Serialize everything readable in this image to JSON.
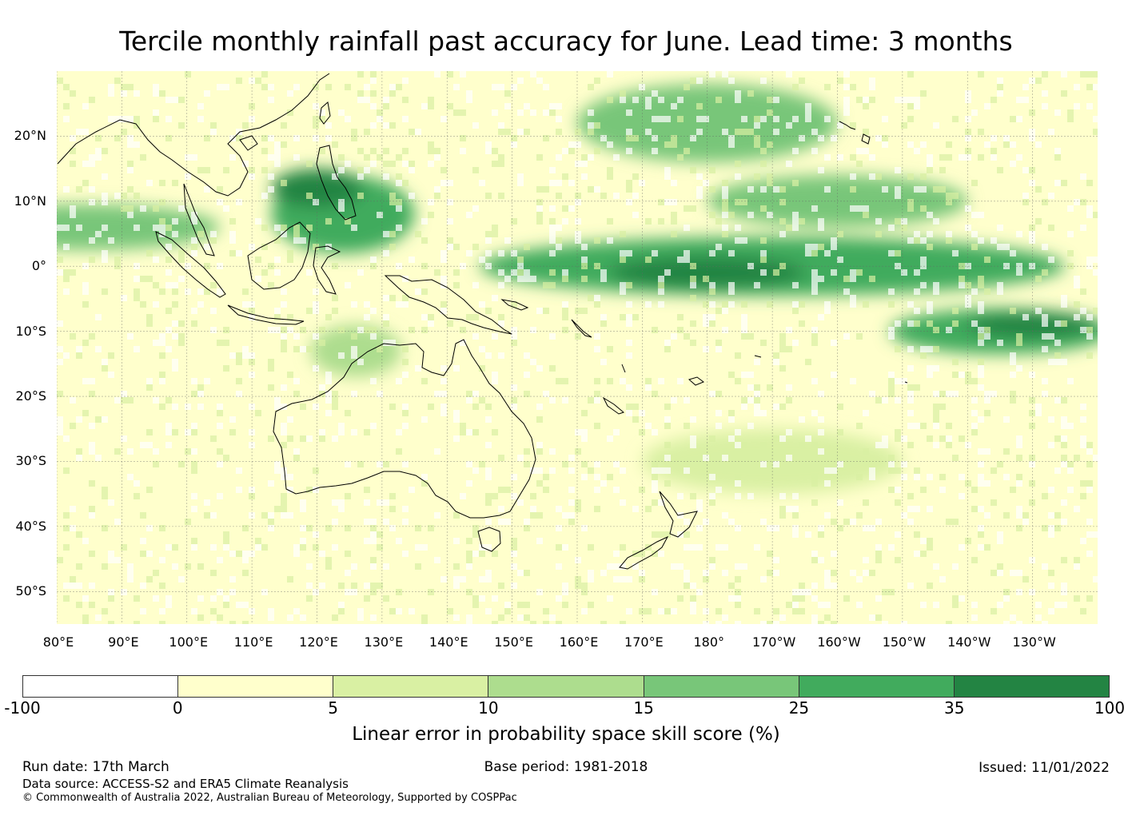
{
  "title": "Tercile monthly rainfall past accuracy for June. Lead time: 3 months",
  "map": {
    "extent": {
      "lon_min": 80,
      "lon_max": 240,
      "lat_min": -55,
      "lat_max": 30
    },
    "lat_labels": [
      {
        "lat": 20,
        "label": "20°N"
      },
      {
        "lat": 10,
        "label": "10°N"
      },
      {
        "lat": 0,
        "label": "0°"
      },
      {
        "lat": -10,
        "label": "10°S"
      },
      {
        "lat": -20,
        "label": "20°S"
      },
      {
        "lat": -30,
        "label": "30°S"
      },
      {
        "lat": -40,
        "label": "40°S"
      },
      {
        "lat": -50,
        "label": "50°S"
      }
    ],
    "lon_labels": [
      {
        "lon": 80,
        "label": "80°E"
      },
      {
        "lon": 90,
        "label": "90°E"
      },
      {
        "lon": 100,
        "label": "100°E"
      },
      {
        "lon": 110,
        "label": "110°E"
      },
      {
        "lon": 120,
        "label": "120°E"
      },
      {
        "lon": 130,
        "label": "130°E"
      },
      {
        "lon": 140,
        "label": "140°E"
      },
      {
        "lon": 150,
        "label": "150°E"
      },
      {
        "lon": 160,
        "label": "160°E"
      },
      {
        "lon": 170,
        "label": "170°E"
      },
      {
        "lon": 180,
        "label": "180°"
      },
      {
        "lon": 190,
        "label": "170°W"
      },
      {
        "lon": 200,
        "label": "160°W"
      },
      {
        "lon": 210,
        "label": "150°W"
      },
      {
        "lon": 220,
        "label": "140°W"
      },
      {
        "lon": 230,
        "label": "130°W"
      }
    ],
    "skill_bands": [
      {
        "name": "itcz-west",
        "lon": 85,
        "lat": 6,
        "width_deg": 40,
        "height_deg": 7,
        "level": 3
      },
      {
        "name": "maritime-continent",
        "lon": 124,
        "lat": 8,
        "width_deg": 22,
        "height_deg": 12,
        "level": 4
      },
      {
        "name": "south-china-sea",
        "lon": 120,
        "lat": 12,
        "width_deg": 14,
        "height_deg": 6,
        "level": 5
      },
      {
        "name": "north-pacific",
        "lon": 180,
        "lat": 22,
        "width_deg": 40,
        "height_deg": 12,
        "level": 3
      },
      {
        "name": "central-pacific-itcz",
        "lon": 200,
        "lat": 10,
        "width_deg": 40,
        "height_deg": 8,
        "level": 3
      },
      {
        "name": "equatorial-pacific",
        "lon": 190,
        "lat": 0,
        "width_deg": 90,
        "height_deg": 9,
        "level": 4
      },
      {
        "name": "equatorial-core",
        "lon": 180,
        "lat": -1,
        "width_deg": 30,
        "height_deg": 5,
        "level": 5
      },
      {
        "name": "south-pacific-band",
        "lon": 225,
        "lat": -10,
        "width_deg": 34,
        "height_deg": 7,
        "level": 4
      },
      {
        "name": "spcz-core",
        "lon": 230,
        "lat": -9,
        "width_deg": 20,
        "height_deg": 4,
        "level": 5
      },
      {
        "name": "timor-sea",
        "lon": 126,
        "lat": -13,
        "width_deg": 14,
        "height_deg": 8,
        "level": 2
      },
      {
        "name": "subtropical-south",
        "lon": 190,
        "lat": -30,
        "width_deg": 40,
        "height_deg": 10,
        "level": 1
      }
    ]
  },
  "colorbar": {
    "ticks": [
      "-100",
      "0",
      "5",
      "10",
      "15",
      "25",
      "35",
      "100"
    ],
    "colors": [
      "#ffffff",
      "#ffffcc",
      "#d9f0a3",
      "#addd8e",
      "#78c679",
      "#41ab5d",
      "#238443"
    ],
    "label": "Linear error in probability space skill score (%)"
  },
  "footer": {
    "run_date": "Run date: 17th March",
    "base_period": "Base period: 1981-2018",
    "issued": "Issued: 11/01/2022",
    "data_source": "Data source: ACCESS-S2 and ERA5 Climate Reanalysis",
    "copyright": "© Commonwealth of Australia 2022, Australian Bureau of Meteorology, Supported by COSPPac"
  }
}
